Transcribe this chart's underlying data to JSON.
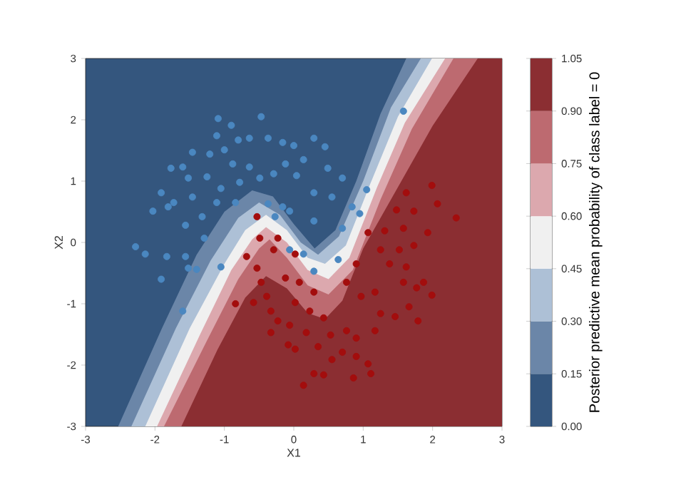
{
  "chart_data": {
    "type": "scatter",
    "xlabel": "X1",
    "ylabel": "X2",
    "clabel": "Posterior predictive mean probability of class label = 0",
    "xlim": [
      -3,
      3
    ],
    "ylim": [
      -3,
      3
    ],
    "xticks": [
      -3,
      -2,
      -1,
      0,
      1,
      2,
      3
    ],
    "yticks": [
      -3,
      -2,
      -1,
      0,
      1,
      2,
      3
    ],
    "clim": [
      0,
      1.05
    ],
    "cticks": [
      {
        "value": 0,
        "label": "0.00"
      },
      {
        "value": 0.15,
        "label": "0.15"
      },
      {
        "value": 0.3,
        "label": "0.30"
      },
      {
        "value": 0.45,
        "label": "0.45"
      },
      {
        "value": 0.6,
        "label": "0.60"
      },
      {
        "value": 0.75,
        "label": "0.75"
      },
      {
        "value": 0.9,
        "label": "0.90"
      },
      {
        "value": 1.05,
        "label": "1.05"
      }
    ],
    "colors": [
      "#34567e",
      "#6b86a8",
      "#adc0d6",
      "#f0f0f0",
      "#dca8ae",
      "#bd6a70",
      "#8b2e32"
    ],
    "grid": false,
    "series": [
      {
        "type": "area",
        "color": "#6b86a8",
        "marker": "none",
        "x": [
          -2.53,
          -1.9,
          -1.4,
          -1.0,
          -0.6,
          -0.3,
          0.0,
          0.3,
          0.6,
          0.9,
          1.25,
          1.62,
          3,
          3
        ],
        "values": [
          -3,
          -1.4,
          -0.2,
          0.5,
          0.85,
          0.75,
          0.3,
          -0.1,
          0.2,
          1.0,
          2.1,
          3,
          3,
          -3
        ]
      },
      {
        "type": "area",
        "color": "#adc0d6",
        "marker": "none",
        "x": [
          -2.34,
          -1.7,
          -1.2,
          -0.8,
          -0.5,
          -0.2,
          0.1,
          0.35,
          0.65,
          1.0,
          1.4,
          1.83,
          3,
          3
        ],
        "values": [
          -3,
          -1.4,
          -0.3,
          0.4,
          0.65,
          0.45,
          0.0,
          -0.2,
          0.1,
          1.0,
          2.2,
          3,
          3,
          -3
        ]
      },
      {
        "type": "area",
        "color": "#f0f0f0",
        "marker": "none",
        "x": [
          -2.14,
          -1.5,
          -1.0,
          -0.7,
          -0.4,
          -0.1,
          0.2,
          0.45,
          0.75,
          1.1,
          1.5,
          1.99,
          3,
          3
        ],
        "values": [
          -3,
          -1.4,
          -0.35,
          0.2,
          0.45,
          0.2,
          -0.25,
          -0.35,
          -0.05,
          0.95,
          2.05,
          3,
          3,
          -3
        ]
      },
      {
        "type": "area",
        "color": "#dca8ae",
        "marker": "none",
        "x": [
          -1.97,
          -1.35,
          -0.9,
          -0.6,
          -0.4,
          -0.1,
          0.2,
          0.5,
          0.8,
          1.2,
          1.6,
          2.18,
          3,
          3
        ],
        "values": [
          -3,
          -1.5,
          -0.45,
          0.05,
          0.25,
          0.0,
          -0.45,
          -0.6,
          -0.25,
          0.9,
          1.95,
          3,
          3,
          -3
        ]
      },
      {
        "type": "area",
        "color": "#bd6a70",
        "marker": "none",
        "x": [
          -1.87,
          -1.25,
          -0.8,
          -0.5,
          -0.35,
          -0.1,
          0.2,
          0.5,
          0.85,
          1.25,
          1.7,
          2.3,
          3,
          3
        ],
        "values": [
          -3,
          -1.6,
          -0.6,
          -0.1,
          0.05,
          -0.25,
          -0.7,
          -0.85,
          -0.45,
          0.7,
          1.85,
          3,
          3,
          -3
        ]
      },
      {
        "type": "area",
        "color": "#8b2e32",
        "marker": "none",
        "x": [
          -1.62,
          -1.1,
          -0.7,
          -0.4,
          -0.1,
          0.2,
          0.45,
          0.7,
          1.0,
          1.5,
          2.0,
          2.65,
          3,
          3
        ],
        "values": [
          -3,
          -1.75,
          -0.9,
          -0.55,
          -0.75,
          -1.15,
          -1.25,
          -0.95,
          -0.1,
          0.9,
          1.9,
          3,
          3,
          -3
        ]
      },
      {
        "type": "scatter",
        "marker": "circle",
        "color": "#4a87c0",
        "x": [
          -2.28,
          -2.14,
          -1.91,
          -1.83,
          -1.56,
          -1.52,
          -1.4,
          -1.6,
          -1.29,
          -1.05,
          -1.09,
          -0.9,
          -0.47,
          -1.11,
          -0.8,
          -0.64,
          -1.46,
          -1.0,
          -0.37,
          -0.16,
          -1.6,
          -1.21,
          -0.88,
          -0.64,
          -1.77,
          -1.52,
          -1.25,
          -1.05,
          -0.78,
          -0.49,
          -0.29,
          -0.12,
          -1.91,
          -1.73,
          -1.46,
          -1.11,
          -0.84,
          -2.03,
          -1.81,
          -1.32,
          -1.56,
          -0.37,
          -0.16,
          -0.27,
          0.0,
          0.29,
          0.45,
          0.14,
          0.49,
          0.7,
          0.04,
          0.29,
          0.55,
          0.84,
          1.05,
          1.58,
          -0.06,
          0.29,
          0.95,
          0.7,
          0.14,
          0.64,
          0.29,
          -0.06
        ],
        "values": [
          -0.07,
          -0.19,
          -0.6,
          -0.23,
          -0.23,
          -0.42,
          -0.44,
          -1.12,
          0.07,
          -0.4,
          2.02,
          1.91,
          2.05,
          1.74,
          1.67,
          1.7,
          1.47,
          1.51,
          1.7,
          1.63,
          1.23,
          1.44,
          1.28,
          1.23,
          1.21,
          1.05,
          1.07,
          0.88,
          0.98,
          1.05,
          1.12,
          1.28,
          0.81,
          0.65,
          0.74,
          0.65,
          0.65,
          0.51,
          0.58,
          0.42,
          0.28,
          0.63,
          0.58,
          0.42,
          1.58,
          1.7,
          1.56,
          1.35,
          1.21,
          1.05,
          1.09,
          0.81,
          0.74,
          0.58,
          0.86,
          2.14,
          0.51,
          0.35,
          0.47,
          0.23,
          -0.19,
          -0.28,
          -0.47,
          -0.12
        ]
      },
      {
        "type": "scatter",
        "marker": "circle",
        "color": "#a30d0d",
        "x": [
          -0.53,
          -0.49,
          -0.23,
          1.62,
          1.99,
          2.07,
          2.34,
          1.48,
          1.73,
          1.07,
          1.31,
          1.58,
          1.93,
          -0.68,
          -0.53,
          -0.29,
          -0.47,
          -0.84,
          -0.58,
          -0.39,
          -0.33,
          -0.23,
          -0.33,
          -0.08,
          0.02,
          -0.12,
          0.08,
          0.29,
          0.02,
          0.23,
          0.43,
          -0.06,
          0.18,
          0.53,
          0.35,
          0.02,
          0.7,
          0.9,
          0.29,
          0.14,
          0.43,
          0.86,
          1.07,
          1.11,
          0.76,
          0.97,
          1.17,
          1.25,
          1.46,
          1.58,
          1.77,
          1.66,
          1.79,
          1.38,
          1.62,
          1.87,
          1.99,
          0.9,
          1.25,
          1.52,
          1.73,
          1.17,
          0.76,
          0.55,
          0.9
        ],
        "values": [
          0.42,
          0.07,
          0.07,
          0.81,
          0.93,
          0.63,
          0.4,
          0.53,
          0.51,
          0.16,
          0.19,
          0.23,
          0.16,
          -0.23,
          -0.42,
          -0.12,
          -0.65,
          -1.0,
          -0.98,
          -0.88,
          -1.12,
          -1.28,
          -1.47,
          -1.67,
          -0.19,
          -0.58,
          -0.65,
          -0.81,
          -0.98,
          -1.12,
          -1.23,
          -1.35,
          -1.47,
          -1.51,
          -1.7,
          -1.74,
          -1.79,
          -1.86,
          -2.14,
          -2.33,
          -2.16,
          -2.21,
          -1.98,
          -2.14,
          -0.65,
          -0.88,
          -0.81,
          -1.16,
          -1.21,
          -0.65,
          -0.74,
          -1.05,
          -1.28,
          -0.35,
          -0.4,
          -0.65,
          -0.86,
          -0.35,
          -0.12,
          -0.12,
          -0.05,
          -1.44,
          -1.44,
          -1.91,
          -1.56
        ]
      }
    ]
  }
}
